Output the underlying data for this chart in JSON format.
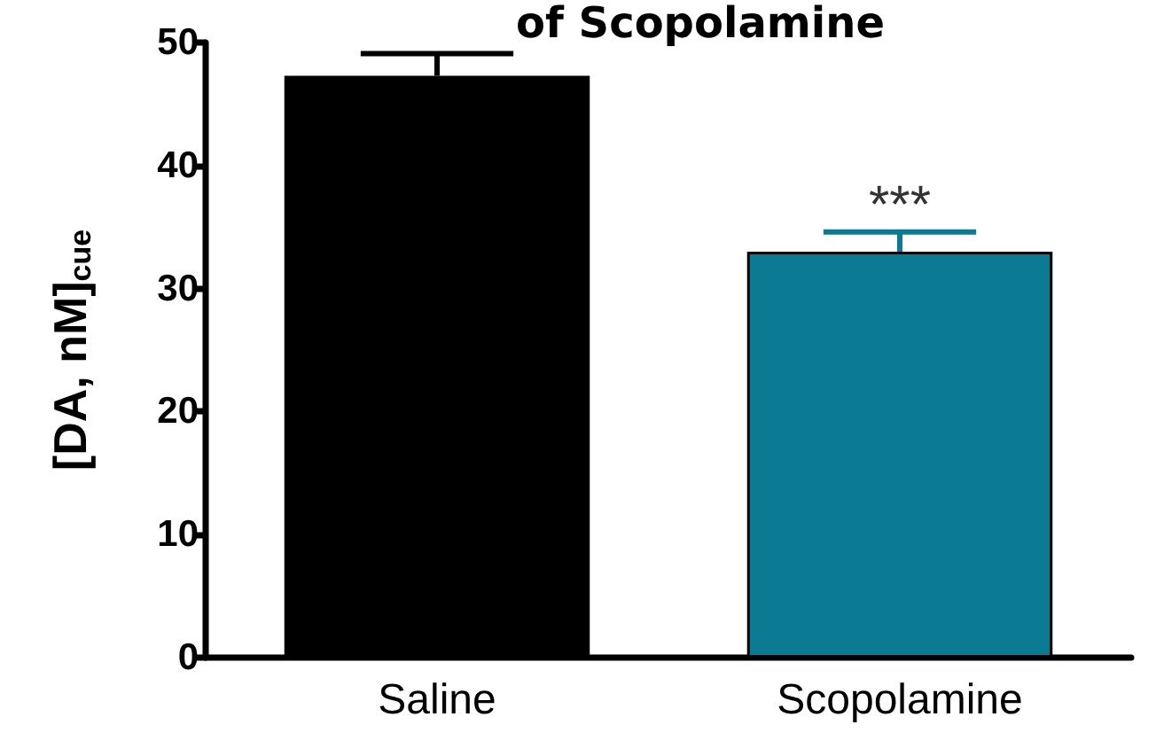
{
  "chart_data": {
    "type": "bar",
    "title": "of Scopolamine",
    "ylabel": "[DA, nM]$_{cue}$",
    "categories": [
      "Saline",
      "Scopolamine"
    ],
    "values": [
      47.3,
      33.0
    ],
    "colors": [
      "#000000",
      "#0a7b93"
    ],
    "errors": [
      [
        47.3,
        49.1
      ],
      [
        33.0,
        34.6
      ]
    ],
    "ylim": [
      0,
      50
    ],
    "yticks": [
      0,
      10,
      20,
      30,
      40,
      50
    ],
    "annotations": [
      {
        "text": "***",
        "x": "Scopolamine",
        "y": 34.6
      }
    ],
    "grid": false
  }
}
